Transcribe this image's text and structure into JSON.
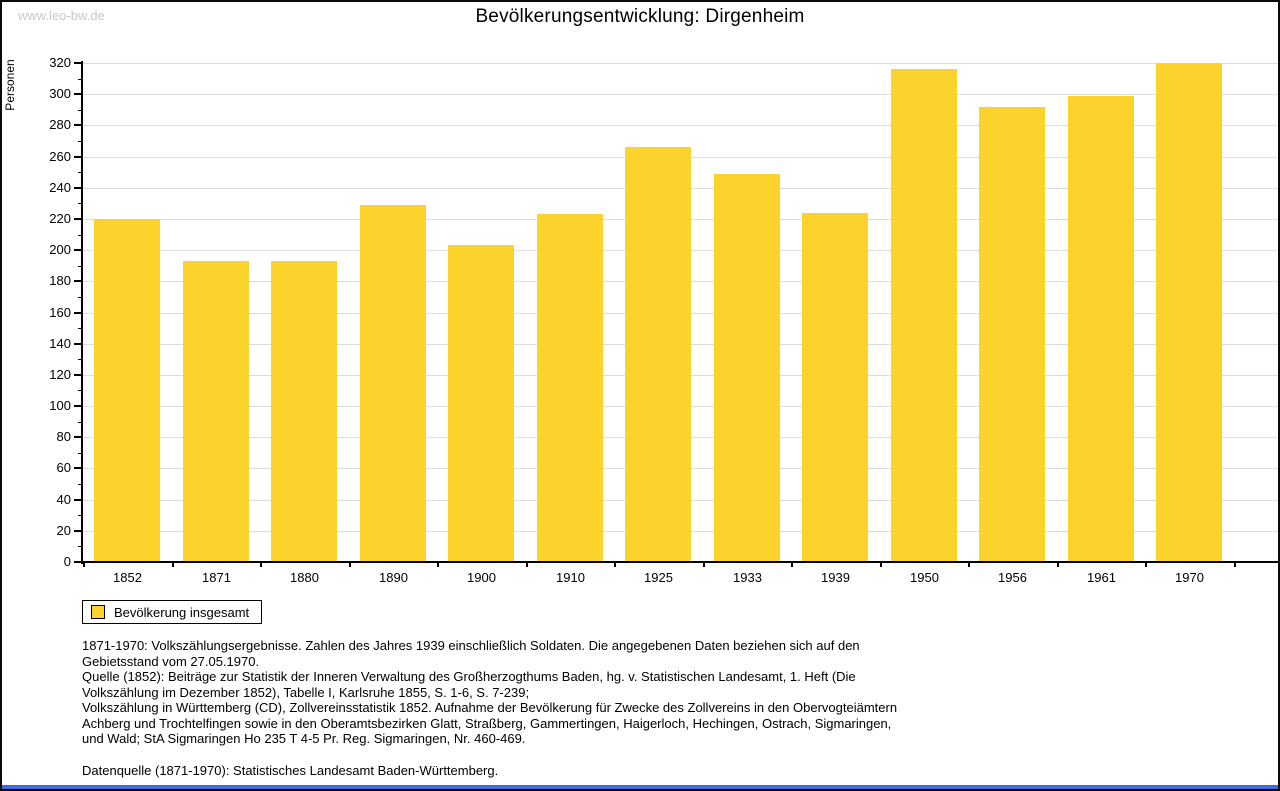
{
  "page": {
    "watermark": "www.leo-bw.de",
    "watermark_color": "#c9c9c9",
    "background": "#ffffff",
    "border_color": "#0a0a0a",
    "bottom_bar_color": "#4169e1"
  },
  "chart_data": {
    "type": "bar",
    "title": "Bevölkerungsentwicklung: Dirgenheim",
    "xlabel": "",
    "ylabel": "Personen",
    "categories": [
      "1852",
      "1871",
      "1880",
      "1890",
      "1900",
      "1910",
      "1925",
      "1933",
      "1939",
      "1950",
      "1956",
      "1961",
      "1970"
    ],
    "values": [
      220,
      193,
      193,
      229,
      203,
      223,
      266,
      249,
      224,
      316,
      292,
      299,
      320
    ],
    "series_name": "Bevölkerung insgesamt",
    "ylim": [
      0,
      320
    ],
    "ytick_step": 20,
    "ytick_minor_step": 10,
    "grid": true,
    "bar_color": "#fcd32d",
    "gridline_color": "#dcdcdc",
    "axis_color": "#000000",
    "legend_position": "bottom-left"
  },
  "legend": {
    "items": [
      {
        "label": "Bevölkerung insgesamt",
        "swatch_color": "#fcd32d"
      }
    ]
  },
  "footnotes": {
    "paragraphs": [
      "1871-1970: Volkszählungsergebnisse. Zahlen des Jahres 1939 einschließlich Soldaten. Die angegebenen Daten beziehen sich auf den Gebietsstand vom 27.05.1970.",
      "Quelle (1852): Beiträge zur Statistik der Inneren Verwaltung des Großherzogthums Baden, hg. v. Statistischen Landesamt, 1. Heft (Die Volkszählung im Dezember 1852), Tabelle I, Karlsruhe 1855, S. 1-6, S. 7-239;",
      "Volkszählung in Württemberg (CD), Zollvereinsstatistik 1852. Aufnahme der Bevölkerung für Zwecke des Zollvereins in den Obervogteiämtern Achberg und Trochtelfingen sowie in den Oberamtsbezirken Glatt, Straßberg, Gammertingen, Haigerloch, Hechingen, Ostrach, Sigmaringen, und Wald; StA Sigmaringen Ho 235 T 4-5 Pr. Reg. Sigmaringen, Nr. 460-469."
    ],
    "source": "Datenquelle (1871-1970): Statistisches Landesamt Baden-Württemberg."
  }
}
